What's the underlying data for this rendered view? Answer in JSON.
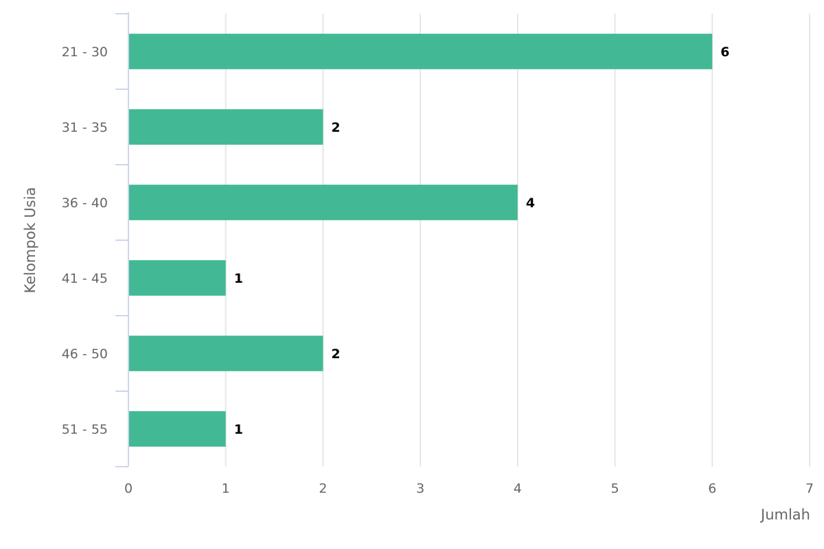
{
  "chart_data": {
    "type": "bar",
    "orientation": "horizontal",
    "categories": [
      "21 - 30",
      "31 - 35",
      "36 - 40",
      "41 - 45",
      "46 - 50",
      "51 - 55"
    ],
    "values": [
      6,
      2,
      4,
      1,
      2,
      1
    ],
    "data_labels": [
      "6",
      "2",
      "4",
      "1",
      "2",
      "1"
    ],
    "xlabel": "Jumlah",
    "ylabel": "Kelompok Usia",
    "xlim": [
      0,
      7
    ],
    "x_ticks": [
      "0",
      "1",
      "2",
      "3",
      "4",
      "5",
      "6",
      "7"
    ],
    "grid": true,
    "bar_color": "#42b994"
  }
}
